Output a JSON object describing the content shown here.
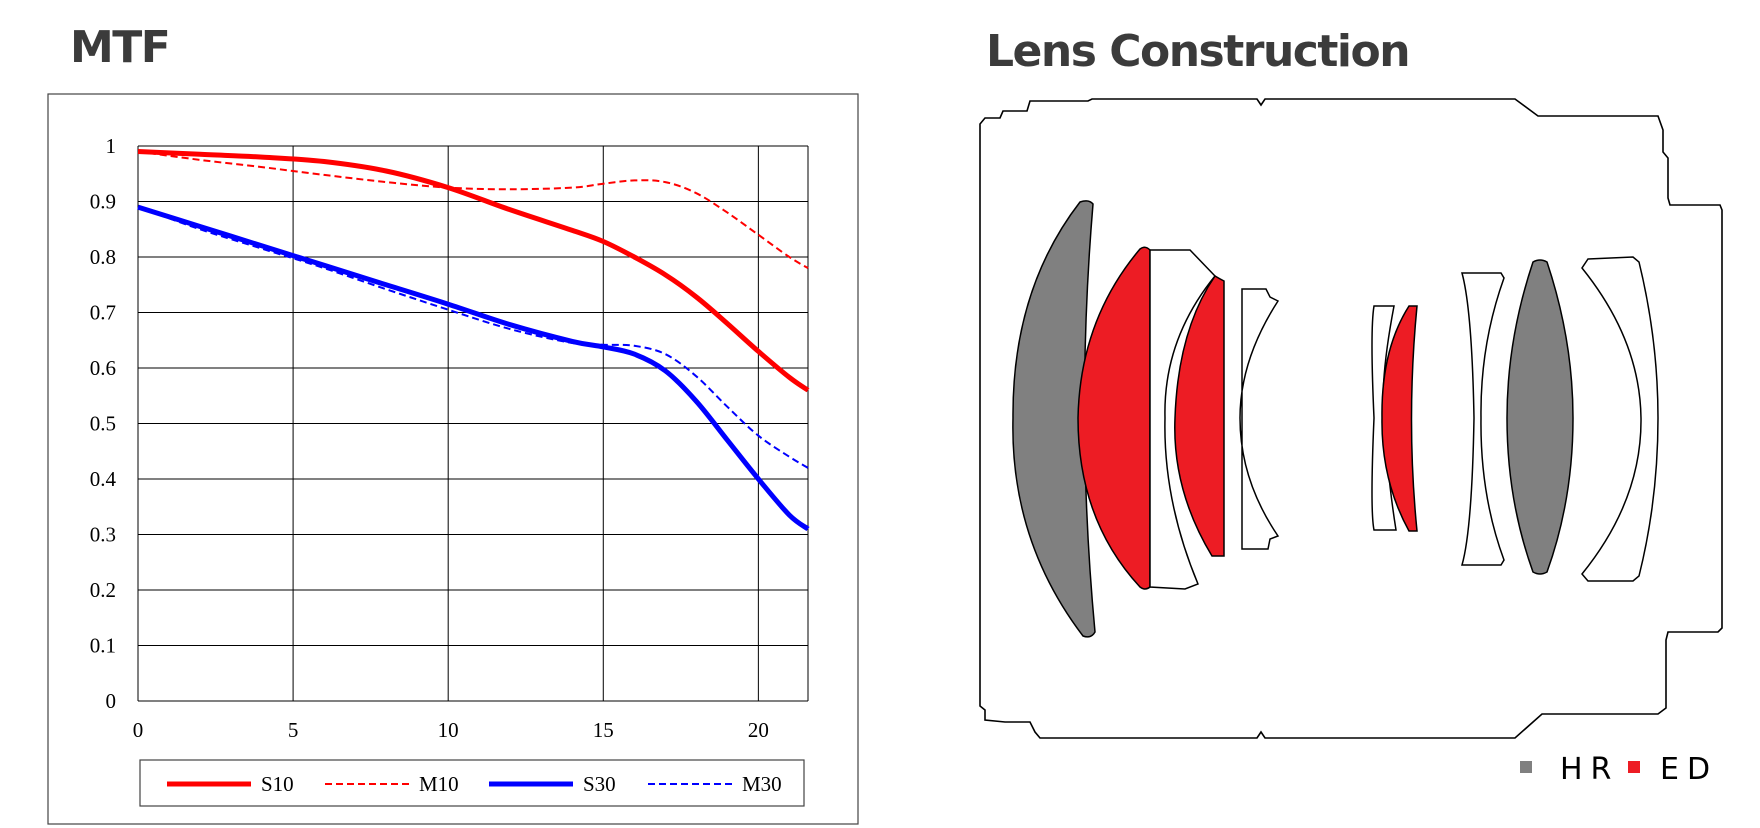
{
  "mtf": {
    "title": "MTF"
  },
  "lens": {
    "title": "Lens Construction",
    "legend": [
      {
        "label": "HR",
        "color": "#808080"
      },
      {
        "label": "ED",
        "color": "#ed1c24"
      }
    ]
  },
  "colors": {
    "sagittal_10": "#ff0000",
    "meridional_10": "#ff0000",
    "sagittal_30": "#0000ff",
    "meridional_30": "#0000ff",
    "hr_glass": "#808080",
    "ed_glass": "#ed1c24"
  },
  "chart_data": {
    "type": "line",
    "title": "MTF",
    "xlabel": "",
    "ylabel": "",
    "xlim": [
      0,
      21.6
    ],
    "ylim": [
      0,
      1
    ],
    "xticks": [
      "0",
      "5",
      "10",
      "15",
      "20"
    ],
    "yticks": [
      "0",
      "0.1",
      "0.2",
      "0.3",
      "0.4",
      "0.5",
      "0.6",
      "0.7",
      "0.8",
      "0.9",
      "1"
    ],
    "grid": true,
    "legend_position": "bottom",
    "series": [
      {
        "name": "S10",
        "style": "solid",
        "color": "#ff0000",
        "x": [
          0,
          2,
          4,
          6,
          8,
          10,
          12,
          14,
          15,
          16,
          17,
          18,
          19,
          20,
          21,
          21.6
        ],
        "y": [
          0.99,
          0.985,
          0.98,
          0.972,
          0.955,
          0.925,
          0.885,
          0.848,
          0.828,
          0.8,
          0.768,
          0.728,
          0.68,
          0.63,
          0.583,
          0.56
        ]
      },
      {
        "name": "M10",
        "style": "dashed",
        "color": "#ff0000",
        "x": [
          0,
          2,
          4,
          6,
          8,
          10,
          12,
          14,
          15,
          16,
          17,
          18,
          19,
          20,
          21,
          21.6
        ],
        "y": [
          0.99,
          0.975,
          0.962,
          0.948,
          0.935,
          0.925,
          0.922,
          0.925,
          0.932,
          0.938,
          0.935,
          0.915,
          0.88,
          0.84,
          0.8,
          0.78
        ]
      },
      {
        "name": "S30",
        "style": "solid",
        "color": "#0000ff",
        "x": [
          0,
          2,
          4,
          6,
          8,
          10,
          12,
          14,
          15,
          16,
          17,
          18,
          19,
          20,
          21,
          21.6
        ],
        "y": [
          0.89,
          0.855,
          0.82,
          0.785,
          0.75,
          0.715,
          0.678,
          0.648,
          0.638,
          0.625,
          0.595,
          0.54,
          0.47,
          0.4,
          0.335,
          0.31
        ]
      },
      {
        "name": "M30",
        "style": "dashed",
        "color": "#0000ff",
        "x": [
          0,
          2,
          4,
          6,
          8,
          10,
          12,
          14,
          15,
          16,
          17,
          18,
          19,
          20,
          21,
          21.6
        ],
        "y": [
          0.89,
          0.85,
          0.815,
          0.78,
          0.742,
          0.705,
          0.67,
          0.645,
          0.642,
          0.64,
          0.625,
          0.585,
          0.53,
          0.478,
          0.44,
          0.42
        ]
      }
    ]
  }
}
